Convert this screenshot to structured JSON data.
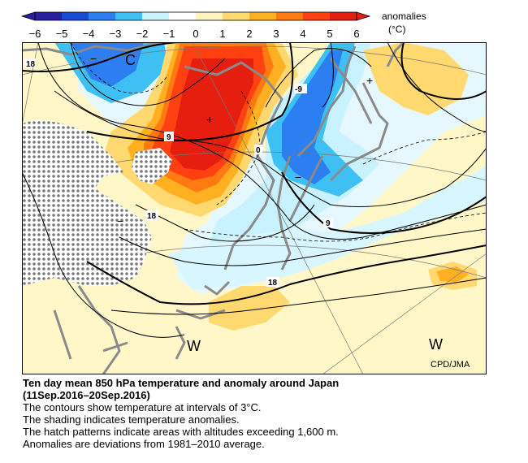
{
  "colorbar": {
    "title": "anomalies",
    "unit": "(°C)",
    "ticks": [
      "−6",
      "−5",
      "−4",
      "−3",
      "−2",
      "−1",
      "0",
      "1",
      "2",
      "3",
      "4",
      "5",
      "6"
    ],
    "colors": [
      "#2a1fa0",
      "#1a4ad8",
      "#2b7ff0",
      "#3ec0f4",
      "#c8f2ff",
      "#ffffff",
      "#fff4c0",
      "#ffd870",
      "#ffb020",
      "#ff7a10",
      "#ff4010",
      "#e61e10"
    ]
  },
  "map": {
    "pressure_symbols": {
      "low_west": "C",
      "west_south_1": "W",
      "west_south_2": "W"
    },
    "contour_labels": [
      "18",
      "9",
      "0",
      "-9",
      "9",
      "18",
      "18"
    ],
    "markers": [
      "+",
      "+",
      "−",
      "−",
      "−"
    ],
    "credit": "CPD/JMA",
    "colors": {
      "land_outline": "#8a8a8a",
      "contour": "#000000",
      "hatch": "#7a7a7a"
    }
  },
  "caption": {
    "title_line1": "Ten day mean 850 hPa temperature and anomaly around Japan",
    "title_line2": "(11Sep.2016–20Sep.2016)",
    "lines": [
      "The contours show temperature at intervals of 3°C.",
      "The shading indicates temperature anomalies.",
      "The hatch patterns indicate areas with altitudes exceeding 1,600 m.",
      "Anomalies are deviations from 1981–2010 average."
    ]
  }
}
